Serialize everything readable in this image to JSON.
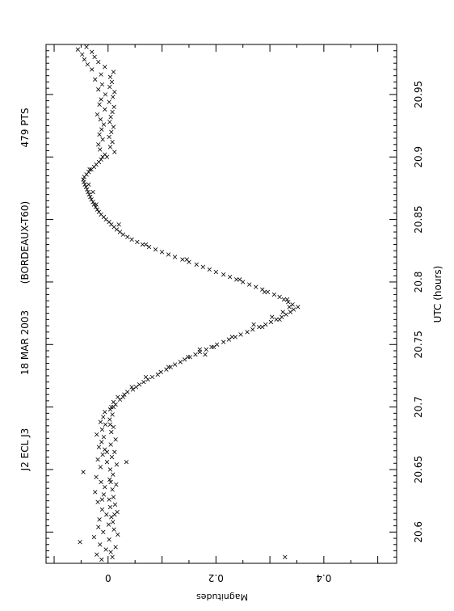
{
  "chart_data": {
    "type": "scatter",
    "header": {
      "object": "J2 ECL J3",
      "date": "18 MAR 2003",
      "observatory": "(BORDEAUX-T60)",
      "points": "479 PTS"
    },
    "xlabel": "UTC (hours)",
    "ylabel": "Magnitudes",
    "xlim": [
      20.575,
      20.99
    ],
    "ylim": [
      -0.115,
      0.535
    ],
    "x_ticks": [
      "20.6",
      "20.65",
      "20.7",
      "20.75",
      "20.8",
      "20.85",
      "20.9",
      "20.95"
    ],
    "y_ticks": [
      "0",
      "0.2",
      "0.4"
    ],
    "y_inverted": true,
    "marker": "x",
    "grid": false,
    "legend": "none",
    "rotated_90": true,
    "series": [
      {
        "values": [
          [
            20.578,
            -0.012
          ],
          [
            20.58,
            0.008
          ],
          [
            20.582,
            -0.021
          ],
          [
            20.584,
            0.005
          ],
          [
            20.586,
            -0.004
          ],
          [
            20.588,
            0.014
          ],
          [
            20.59,
            -0.015
          ],
          [
            20.592,
            -0.052
          ],
          [
            20.594,
            0.002
          ],
          [
            20.596,
            -0.026
          ],
          [
            20.598,
            0.018
          ],
          [
            20.6,
            -0.009
          ],
          [
            20.602,
            0.011
          ],
          [
            20.604,
            -0.018
          ],
          [
            20.606,
            0.001
          ],
          [
            20.608,
            0.009
          ],
          [
            20.61,
            -0.016
          ],
          [
            20.612,
            0.006
          ],
          [
            20.614,
            -0.003
          ],
          [
            20.616,
            0.017
          ],
          [
            20.618,
            -0.011
          ],
          [
            20.62,
            0.004
          ],
          [
            20.622,
            0.013
          ],
          [
            20.624,
            -0.019
          ],
          [
            20.626,
            0.002
          ],
          [
            20.628,
            0.01
          ],
          [
            20.63,
            -0.008
          ],
          [
            20.632,
            -0.024
          ],
          [
            20.634,
            0.008
          ],
          [
            20.636,
            -0.006
          ],
          [
            20.638,
            0.015
          ],
          [
            20.64,
            -0.013
          ],
          [
            20.642,
            0.003
          ],
          [
            20.644,
            -0.022
          ],
          [
            20.646,
            0.009
          ],
          [
            20.648,
            -0.046
          ],
          [
            20.65,
            0.004
          ],
          [
            20.652,
            -0.014
          ],
          [
            20.654,
            0.016
          ],
          [
            20.656,
            -0.002
          ],
          [
            20.658,
            -0.019
          ],
          [
            20.66,
            0.007
          ],
          [
            20.662,
            -0.01
          ],
          [
            20.664,
            0.012
          ],
          [
            20.666,
            -0.006
          ],
          [
            20.668,
            -0.017
          ],
          [
            20.67,
            0.005
          ],
          [
            20.672,
            -0.012
          ],
          [
            20.674,
            0.014
          ],
          [
            20.676,
            -0.008
          ],
          [
            20.678,
            -0.021
          ],
          [
            20.68,
            0.006
          ],
          [
            20.682,
            -0.011
          ],
          [
            20.684,
            0.01
          ],
          [
            20.686,
            -0.005
          ],
          [
            20.688,
            -0.014
          ],
          [
            20.69,
            0.003
          ],
          [
            20.692,
            -0.009
          ],
          [
            20.694,
            0.008
          ],
          [
            20.696,
            -0.006
          ],
          [
            20.698,
            0.004
          ],
          [
            20.7,
            0.006
          ],
          [
            20.702,
            0.014
          ],
          [
            20.704,
            0.01
          ],
          [
            20.706,
            0.022
          ],
          [
            20.708,
            0.018
          ],
          [
            20.71,
            0.03
          ],
          [
            20.712,
            0.036
          ],
          [
            20.714,
            0.046
          ],
          [
            20.716,
            0.052
          ],
          [
            20.718,
            0.058
          ],
          [
            20.72,
            0.066
          ],
          [
            20.722,
            0.074
          ],
          [
            20.724,
            0.082
          ],
          [
            20.726,
            0.092
          ],
          [
            20.728,
            0.098
          ],
          [
            20.73,
            0.108
          ],
          [
            20.732,
            0.116
          ],
          [
            20.734,
            0.124
          ],
          [
            20.736,
            0.134
          ],
          [
            20.738,
            0.142
          ],
          [
            20.74,
            0.152
          ],
          [
            20.742,
            0.162
          ],
          [
            20.744,
            0.17
          ],
          [
            20.746,
            0.182
          ],
          [
            20.748,
            0.192
          ],
          [
            20.75,
            0.202
          ],
          [
            20.752,
            0.214
          ],
          [
            20.754,
            0.224
          ],
          [
            20.756,
            0.236
          ],
          [
            20.758,
            0.246
          ],
          [
            20.76,
            0.258
          ],
          [
            20.762,
            0.268
          ],
          [
            20.764,
            0.28
          ],
          [
            20.766,
            0.292
          ],
          [
            20.768,
            0.302
          ],
          [
            20.77,
            0.312
          ],
          [
            20.772,
            0.322
          ],
          [
            20.774,
            0.33
          ],
          [
            20.776,
            0.338
          ],
          [
            20.778,
            0.344
          ],
          [
            20.78,
            0.352
          ],
          [
            20.782,
            0.342
          ],
          [
            20.784,
            0.334
          ],
          [
            20.786,
            0.326
          ],
          [
            20.788,
            0.318
          ],
          [
            20.79,
            0.308
          ],
          [
            20.792,
            0.296
          ],
          [
            20.794,
            0.286
          ],
          [
            20.796,
            0.274
          ],
          [
            20.798,
            0.262
          ],
          [
            20.8,
            0.25
          ],
          [
            20.802,
            0.238
          ],
          [
            20.804,
            0.226
          ],
          [
            20.806,
            0.214
          ],
          [
            20.808,
            0.2
          ],
          [
            20.81,
            0.188
          ],
          [
            20.812,
            0.176
          ],
          [
            20.814,
            0.164
          ],
          [
            20.816,
            0.15
          ],
          [
            20.818,
            0.138
          ],
          [
            20.82,
            0.124
          ],
          [
            20.822,
            0.112
          ],
          [
            20.824,
            0.1
          ],
          [
            20.826,
            0.088
          ],
          [
            20.828,
            0.076
          ],
          [
            20.83,
            0.064
          ],
          [
            20.832,
            0.054
          ],
          [
            20.834,
            0.044
          ],
          [
            20.836,
            0.036
          ],
          [
            20.838,
            0.028
          ],
          [
            20.84,
            0.022
          ],
          [
            20.842,
            0.016
          ],
          [
            20.844,
            0.011
          ],
          [
            20.846,
            0.006
          ],
          [
            20.848,
            0.002
          ],
          [
            20.85,
            -0.004
          ],
          [
            20.852,
            -0.008
          ],
          [
            20.854,
            -0.013
          ],
          [
            20.856,
            -0.017
          ],
          [
            20.858,
            -0.02
          ],
          [
            20.86,
            -0.023
          ],
          [
            20.862,
            -0.026
          ],
          [
            20.864,
            -0.028
          ],
          [
            20.866,
            -0.031
          ],
          [
            20.868,
            -0.033
          ],
          [
            20.87,
            -0.035
          ],
          [
            20.872,
            -0.037
          ],
          [
            20.874,
            -0.039
          ],
          [
            20.876,
            -0.041
          ],
          [
            20.878,
            -0.043
          ],
          [
            20.88,
            -0.045
          ],
          [
            20.882,
            -0.046
          ],
          [
            20.884,
            -0.044
          ],
          [
            20.886,
            -0.04
          ],
          [
            20.888,
            -0.036
          ],
          [
            20.89,
            -0.031
          ],
          [
            20.892,
            -0.026
          ],
          [
            20.894,
            -0.022
          ],
          [
            20.896,
            -0.017
          ],
          [
            20.898,
            -0.013
          ],
          [
            20.9,
            -0.01
          ],
          [
            20.902,
            -0.006
          ],
          [
            20.904,
            0.012
          ],
          [
            20.906,
            -0.015
          ],
          [
            20.908,
            0.004
          ],
          [
            20.91,
            -0.018
          ],
          [
            20.912,
            0.008
          ],
          [
            20.914,
            -0.01
          ],
          [
            20.916,
            0.002
          ],
          [
            20.918,
            -0.016
          ],
          [
            20.92,
            0.006
          ],
          [
            20.922,
            -0.012
          ],
          [
            20.924,
            0.01
          ],
          [
            20.926,
            -0.008
          ],
          [
            20.928,
            0.003
          ],
          [
            20.93,
            -0.014
          ],
          [
            20.932,
            0.005
          ],
          [
            20.934,
            -0.02
          ],
          [
            20.936,
            0.008
          ],
          [
            20.938,
            -0.006
          ],
          [
            20.94,
            0.011
          ],
          [
            20.942,
            -0.016
          ],
          [
            20.944,
            0.002
          ],
          [
            20.946,
            -0.013
          ],
          [
            20.948,
            0.009
          ],
          [
            20.95,
            -0.005
          ],
          [
            20.952,
            0.012
          ],
          [
            20.954,
            -0.018
          ],
          [
            20.956,
            0.003
          ],
          [
            20.958,
            -0.011
          ],
          [
            20.96,
            0.007
          ],
          [
            20.962,
            -0.024
          ],
          [
            20.964,
            0.004
          ],
          [
            20.966,
            -0.013
          ],
          [
            20.968,
            0.01
          ],
          [
            20.97,
            -0.03
          ],
          [
            20.972,
            -0.006
          ],
          [
            20.974,
            -0.038
          ],
          [
            20.976,
            -0.018
          ],
          [
            20.978,
            -0.044
          ],
          [
            20.98,
            -0.025
          ],
          [
            20.982,
            -0.048
          ],
          [
            20.984,
            -0.03
          ],
          [
            20.986,
            -0.056
          ],
          [
            20.988,
            -0.04
          ],
          [
            20.58,
            0.328
          ],
          [
            20.656,
            0.034
          ],
          [
            20.742,
            0.18
          ],
          [
            20.746,
            0.17
          ],
          [
            20.766,
            0.27
          ],
          [
            20.772,
            0.304
          ],
          [
            20.776,
            0.324
          ],
          [
            20.78,
            0.336
          ],
          [
            20.792,
            0.29
          ],
          [
            20.802,
            0.244
          ],
          [
            20.818,
            0.146
          ],
          [
            20.83,
            0.07
          ],
          [
            20.846,
            0.02
          ],
          [
            20.862,
            -0.022
          ],
          [
            20.872,
            -0.028
          ],
          [
            20.878,
            -0.036
          ],
          [
            20.89,
            -0.034
          ],
          [
            20.9,
            -0.002
          ],
          [
            20.614,
            0.012
          ],
          [
            20.626,
            -0.011
          ],
          [
            20.64,
            0.005
          ],
          [
            20.664,
            -0.002
          ],
          [
            20.686,
            0.004
          ],
          [
            20.7,
            0.01
          ],
          [
            20.708,
            0.028
          ],
          [
            20.716,
            0.044
          ],
          [
            20.724,
            0.07
          ],
          [
            20.732,
            0.112
          ],
          [
            20.74,
            0.148
          ],
          [
            20.748,
            0.196
          ],
          [
            20.756,
            0.23
          ],
          [
            20.764,
            0.286
          ],
          [
            20.77,
            0.318
          ],
          [
            20.786,
            0.332
          ]
        ]
      }
    ]
  }
}
